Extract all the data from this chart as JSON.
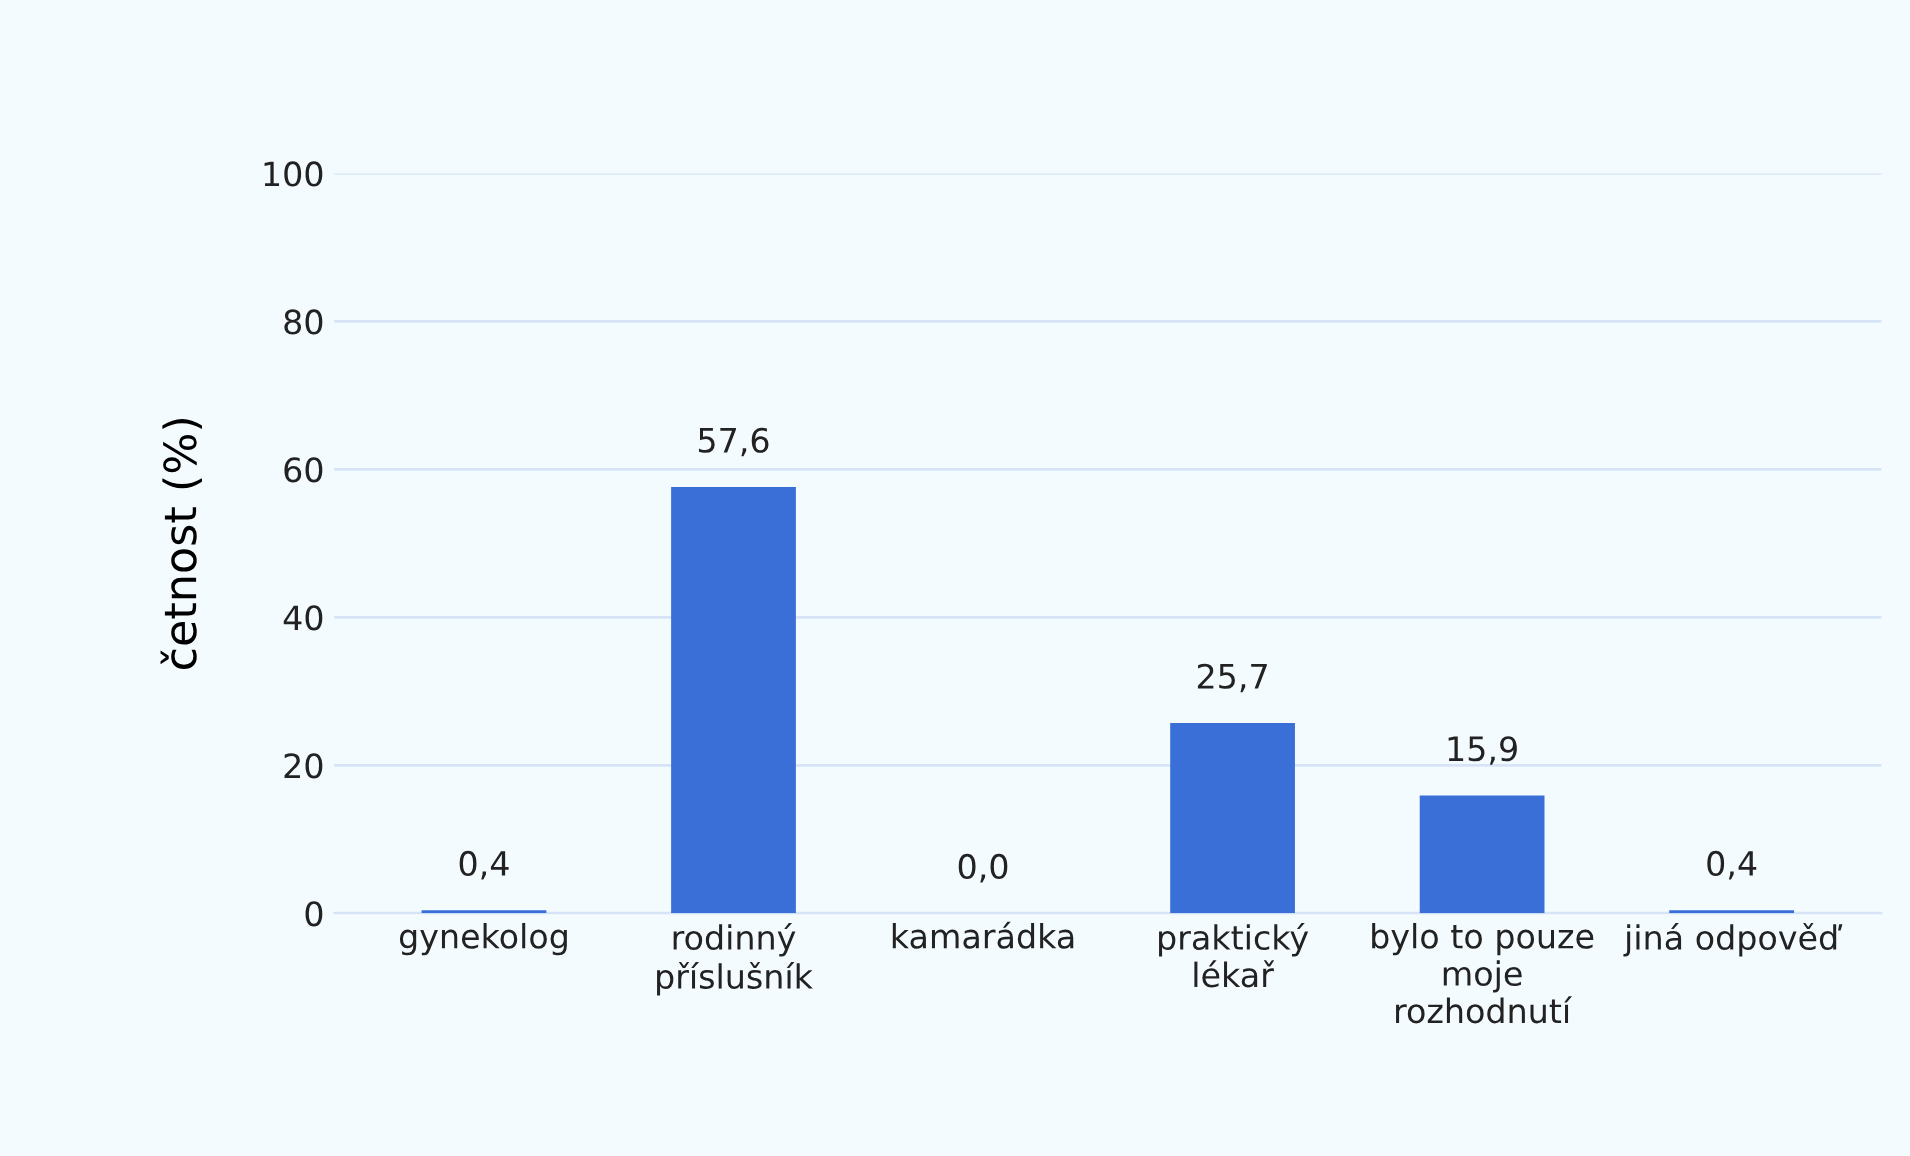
{
  "chart_data": {
    "type": "bar",
    "ylabel": "četnost (%)",
    "categories": [
      "gynekolog",
      "rodinný\npříslušník",
      "kamarádka",
      "praktický\nlékař",
      "bylo to pouze\nmoje\nrozhodnutí",
      "jiná odpověď"
    ],
    "values": [
      0.4,
      57.6,
      0.0,
      25.7,
      15.9,
      0.4
    ],
    "value_labels": [
      "0,4",
      "57,6",
      "0,0",
      "25,7",
      "15,9",
      "0,4"
    ],
    "color": "#3a6fd8",
    "ylim": [
      0,
      100
    ],
    "yticks": [
      0,
      20,
      40,
      60,
      80,
      100
    ],
    "grid": "y"
  }
}
